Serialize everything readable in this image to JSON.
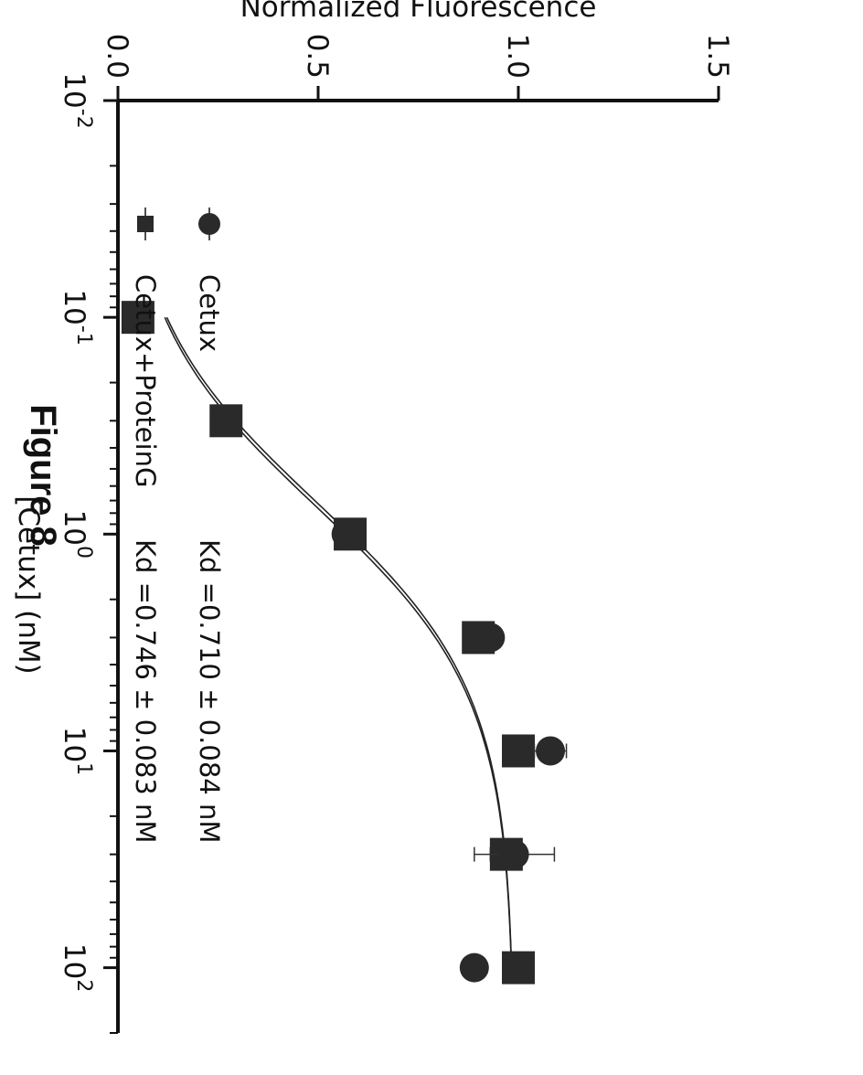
{
  "figure_title": "Figure 8",
  "chart_data": {
    "type": "scatter",
    "x_scale": "log",
    "xlabel": "[Cetux] (nM)",
    "ylabel": "Normalized Fluorescence",
    "xlim": [
      0.01,
      200
    ],
    "ylim": [
      0,
      1.5
    ],
    "x_ticks": [
      {
        "value": 0.01,
        "base": "10",
        "exp": "-2"
      },
      {
        "value": 0.1,
        "base": "10",
        "exp": "-1"
      },
      {
        "value": 1,
        "base": "10",
        "exp": "0"
      },
      {
        "value": 10,
        "base": "10",
        "exp": "1"
      },
      {
        "value": 100,
        "base": "10",
        "exp": "2"
      }
    ],
    "y_ticks": [
      {
        "value": 0,
        "label": "0.0"
      },
      {
        "value": 0.5,
        "label": "0.5"
      },
      {
        "value": 1.0,
        "label": "1.0"
      },
      {
        "value": 1.5,
        "label": "1.5"
      }
    ],
    "series": [
      {
        "name": "Cetux+ProteinG",
        "marker": "square",
        "kd_label": "Kd =0.746 ± 0.083 nM",
        "kd": 0.746,
        "x": [
          0.1,
          0.3,
          1,
          3,
          10,
          30,
          100
        ],
        "y": [
          0.05,
          0.27,
          0.58,
          0.9,
          1.0,
          0.97,
          1.0
        ],
        "err": [
          0,
          0,
          0.02,
          0.02,
          0.03,
          0.04,
          0
        ],
        "fit": {
          "kd": 0.746,
          "max": 0.99,
          "min": 0.0
        }
      },
      {
        "name": "Cetux",
        "marker": "circle",
        "kd_label": "Kd =0.710 ± 0.084 nM",
        "kd": 0.71,
        "x": [
          0.1,
          0.3,
          1,
          3,
          10,
          30,
          100
        ],
        "y": [
          0.05,
          0.27,
          0.57,
          0.93,
          1.08,
          0.99,
          0.89
        ],
        "err": [
          0,
          0,
          0.02,
          0.02,
          0.04,
          0.1,
          0
        ],
        "fit": {
          "kd": 0.71,
          "max": 0.99,
          "min": 0.0
        }
      }
    ],
    "legend_position": "top-left"
  }
}
